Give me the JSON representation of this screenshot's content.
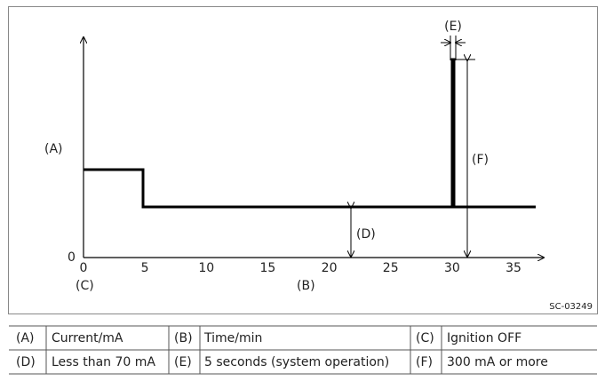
{
  "figure": {
    "axis_labels": {
      "y": "(A)",
      "y_origin": "0",
      "x_caption": "(B)",
      "origin_caption": "(C)"
    },
    "x_ticks": [
      0,
      5,
      10,
      15,
      20,
      25,
      30,
      35
    ],
    "annotations": {
      "d": "(D)",
      "e": "(E)",
      "f": "(F)"
    },
    "code": "SC-03249"
  },
  "legend_table": {
    "rows": [
      [
        "(A)",
        "Current/mA",
        "(B)",
        "Time/min",
        "(C)",
        "Ignition OFF"
      ],
      [
        "(D)",
        "Less than 70 mA",
        "(E)",
        "5 seconds (system operation)",
        "(F)",
        "300 mA or more"
      ]
    ]
  }
}
